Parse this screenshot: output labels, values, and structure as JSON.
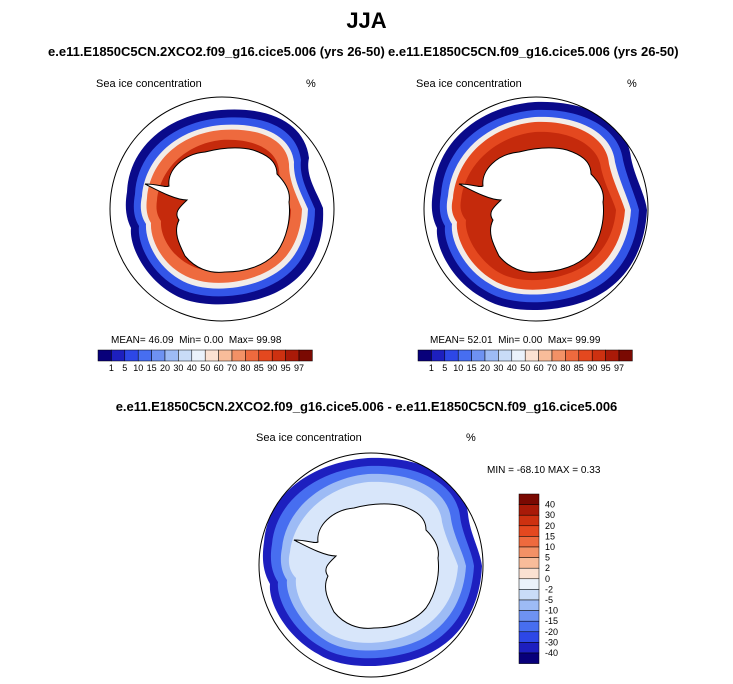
{
  "figure": {
    "season": "JJA",
    "variable": "Sea ice concentration",
    "unit": "%"
  },
  "panels": [
    {
      "case": "e.e11.E1850C5CN.2XCO2.f09_g16.cice5.006 (yrs 26-50)",
      "mean_label": "MEAN=",
      "mean": "46.09",
      "min_label": "Min=",
      "min": "0.00",
      "max_label": "Max=",
      "max": "99.98"
    },
    {
      "case": "e.e11.E1850C5CN.f09_g16.cice5.006 (yrs 26-50)",
      "mean_label": "MEAN=",
      "mean": "52.01",
      "min_label": "Min=",
      "min": "0.00",
      "max_label": "Max=",
      "max": "99.99"
    }
  ],
  "difference": {
    "title": "e.e11.E1850C5CN.2XCO2.f09_g16.cice5.006 - e.e11.E1850C5CN.f09_g16.cice5.006",
    "stats": "MIN = -68.10 MAX =   0.33"
  },
  "colorbar_abs": {
    "labels": [
      "1",
      "5",
      "10",
      "15",
      "20",
      "30",
      "40",
      "50",
      "60",
      "70",
      "80",
      "85",
      "90",
      "95",
      "97"
    ],
    "colors": [
      "#08007a",
      "#1d1fbf",
      "#2d47e6",
      "#476ef0",
      "#6e92f2",
      "#9dbbf5",
      "#c9dcf7",
      "#ebf2fb",
      "#fbe1d2",
      "#f8bc9a",
      "#f39166",
      "#ee6a3e",
      "#e4481f",
      "#cd3110",
      "#a91a08",
      "#7a0902"
    ]
  },
  "colorbar_diff": {
    "labels": [
      "40",
      "30",
      "20",
      "15",
      "10",
      "5",
      "2",
      "0",
      "-2",
      "-5",
      "-10",
      "-15",
      "-20",
      "-30",
      "-40"
    ],
    "colors": [
      "#7a0902",
      "#a91a08",
      "#cd3110",
      "#e4481f",
      "#ee6a3e",
      "#f39166",
      "#f8bc9a",
      "#fbe1d2",
      "#ebf2fb",
      "#c9dcf7",
      "#9dbbf5",
      "#6e92f2",
      "#476ef0",
      "#2d47e6",
      "#1d1fbf",
      "#08007a"
    ]
  }
}
